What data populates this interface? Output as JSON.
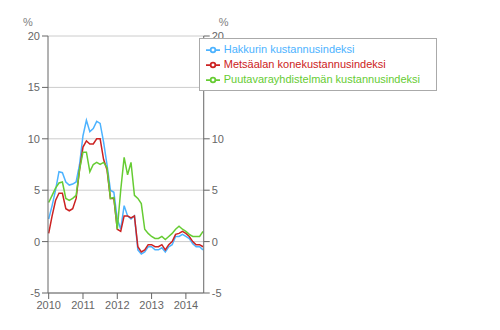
{
  "chart_data": {
    "type": "line",
    "x": [
      2010.0,
      2010.1,
      2010.2,
      2010.3,
      2010.4,
      2010.5,
      2010.6,
      2010.7,
      2010.8,
      2010.9,
      2011.0,
      2011.1,
      2011.2,
      2011.3,
      2011.4,
      2011.5,
      2011.6,
      2011.7,
      2011.8,
      2011.9,
      2012.0,
      2012.1,
      2012.2,
      2012.3,
      2012.4,
      2012.5,
      2012.6,
      2012.7,
      2012.8,
      2012.9,
      2013.0,
      2013.1,
      2013.2,
      2013.3,
      2013.4,
      2013.5,
      2013.6,
      2013.7,
      2013.8,
      2013.9,
      2014.0,
      2014.1,
      2014.2,
      2014.3,
      2014.4,
      2014.5
    ],
    "xlim": [
      2009.98,
      2014.52
    ],
    "xticks": [
      2010,
      2011,
      2012,
      2013,
      2014
    ],
    "ylim": [
      -5,
      20
    ],
    "yticks": [
      -5,
      0,
      5,
      10,
      15,
      20
    ],
    "ylabel": "%",
    "y2label": "%",
    "y2lim": [
      -5,
      20
    ],
    "y2ticks": [
      -5,
      0,
      5,
      10,
      15,
      20
    ],
    "grid": true,
    "legend": "upper right",
    "series": [
      {
        "name": "Hakkurin kustannusindeksi",
        "color": "#4db3ff",
        "values": [
          2.2,
          3.5,
          5.0,
          6.8,
          6.7,
          5.8,
          5.5,
          5.6,
          5.8,
          7.5,
          10.3,
          11.8,
          10.7,
          11.0,
          11.7,
          11.5,
          9.7,
          7.5,
          5.0,
          4.8,
          2.2,
          1.2,
          3.5,
          2.5,
          2.2,
          2.5,
          -0.8,
          -1.2,
          -1.0,
          -0.5,
          -0.5,
          -0.8,
          -0.8,
          -0.6,
          -1.0,
          -0.5,
          -0.3,
          0.5,
          0.5,
          0.7,
          0.5,
          0.3,
          -0.2,
          -0.5,
          -0.5,
          -0.8
        ]
      },
      {
        "name": "Metsäalan konekustannusindeksi",
        "color": "#cc2222",
        "values": [
          0.8,
          2.5,
          4.0,
          4.7,
          4.7,
          3.2,
          3.0,
          3.2,
          4.2,
          7.0,
          9.2,
          9.8,
          9.5,
          9.5,
          10.0,
          10.0,
          8.0,
          7.0,
          4.2,
          4.2,
          1.2,
          1.0,
          2.5,
          2.5,
          2.3,
          2.5,
          -0.5,
          -1.0,
          -0.8,
          -0.3,
          -0.3,
          -0.5,
          -0.5,
          -0.3,
          -0.8,
          -0.3,
          0.0,
          0.7,
          0.8,
          1.0,
          0.8,
          0.5,
          0.0,
          -0.3,
          -0.3,
          -0.5
        ]
      },
      {
        "name": "Puutavarayhdistelmän kustannusindeksi",
        "color": "#66cc33",
        "values": [
          3.8,
          4.5,
          5.2,
          5.7,
          5.8,
          4.2,
          4.0,
          4.2,
          4.5,
          7.0,
          8.7,
          8.7,
          6.8,
          7.5,
          7.7,
          7.5,
          7.7,
          7.2,
          4.2,
          4.3,
          1.2,
          5.0,
          8.2,
          6.5,
          7.7,
          4.5,
          4.2,
          3.7,
          1.2,
          0.8,
          0.5,
          0.3,
          0.3,
          0.5,
          0.2,
          0.5,
          0.8,
          1.2,
          1.5,
          1.2,
          1.0,
          0.7,
          0.5,
          0.5,
          0.5,
          1.0
        ]
      }
    ]
  }
}
